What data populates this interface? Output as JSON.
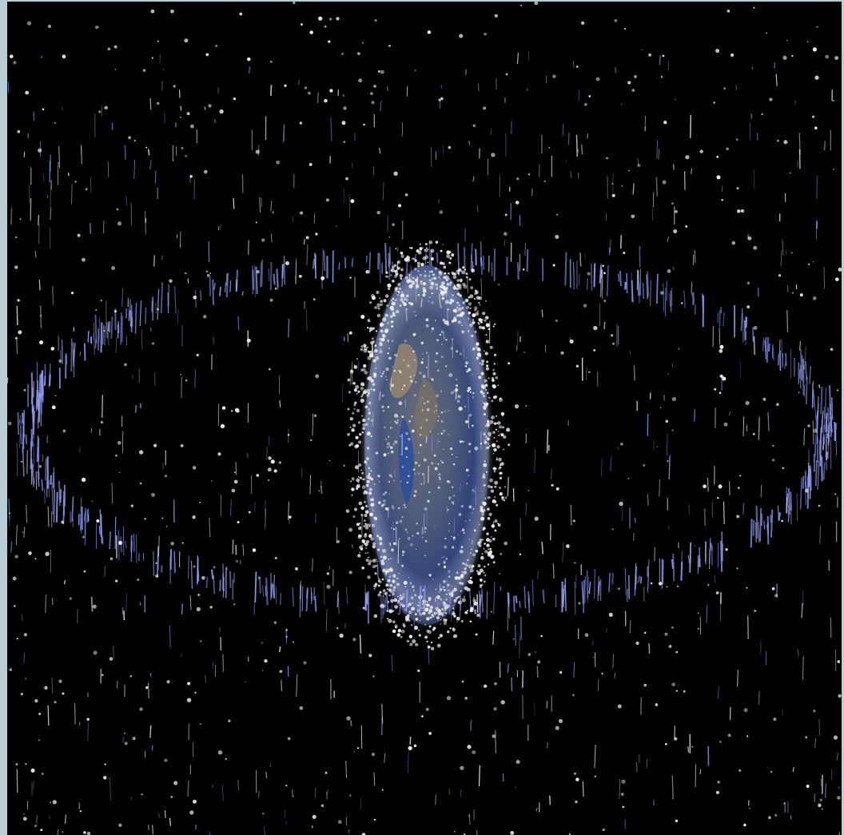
{
  "image": {
    "subject": "space-debris-around-earth",
    "colors": {
      "background": "#000000",
      "frame": "#b7cfd6",
      "ring": "#8f9df2",
      "debris": "#f2f2f2",
      "earth_ocean": "#2e4f9a",
      "earth_land": "#9a8a6e"
    }
  }
}
